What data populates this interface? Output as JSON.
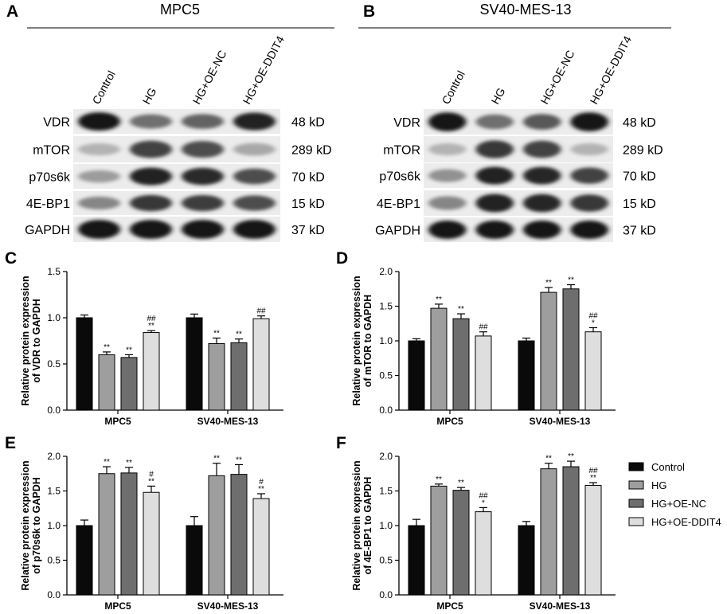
{
  "panel_letters": [
    "A",
    "B",
    "C",
    "D",
    "E",
    "F"
  ],
  "blots": [
    {
      "letter": "A",
      "title": "MPC5",
      "lanes": [
        "Control",
        "HG",
        "HG+OE-NC",
        "HG+OE-DDIT4"
      ],
      "rows": [
        {
          "label": "VDR",
          "kd": "48 kD",
          "intensity": [
            0.95,
            0.55,
            0.6,
            0.9
          ]
        },
        {
          "label": "mTOR",
          "kd": "289 kD",
          "intensity": [
            0.25,
            0.75,
            0.7,
            0.3
          ]
        },
        {
          "label": "p70s6k",
          "kd": "70 kD",
          "intensity": [
            0.35,
            0.9,
            0.85,
            0.7
          ]
        },
        {
          "label": "4E-BP1",
          "kd": "15 kD",
          "intensity": [
            0.45,
            0.8,
            0.78,
            0.7
          ]
        },
        {
          "label": "GAPDH",
          "kd": "37 kD",
          "intensity": [
            0.95,
            0.95,
            0.95,
            0.95
          ]
        }
      ]
    },
    {
      "letter": "B",
      "title": "SV40-MES-13",
      "lanes": [
        "Control",
        "HG",
        "HG+OE-NC",
        "HG+OE-DDIT4"
      ],
      "rows": [
        {
          "label": "VDR",
          "kd": "48 kD",
          "intensity": [
            0.95,
            0.55,
            0.65,
            0.95
          ]
        },
        {
          "label": "mTOR",
          "kd": "289 kD",
          "intensity": [
            0.25,
            0.8,
            0.75,
            0.25
          ]
        },
        {
          "label": "p70s6k",
          "kd": "70 kD",
          "intensity": [
            0.4,
            0.9,
            0.88,
            0.75
          ]
        },
        {
          "label": "4E-BP1",
          "kd": "15 kD",
          "intensity": [
            0.45,
            0.9,
            0.88,
            0.8
          ]
        },
        {
          "label": "GAPDH",
          "kd": "37 kD",
          "intensity": [
            0.95,
            0.95,
            0.95,
            0.95
          ]
        }
      ]
    }
  ],
  "legend": {
    "entries": [
      "Control",
      "HG",
      "HG+OE-NC",
      "HG+OE-DDIT4"
    ],
    "colors": [
      "#0a0a0a",
      "#9e9e9e",
      "#6e6e6e",
      "#dedede"
    ]
  },
  "chart_data": [
    {
      "letter": "C",
      "type": "bar",
      "ylabel": "Relative protein expression\nof VDR to GAPDH",
      "categories": [
        "MPC5",
        "SV40-MES-13"
      ],
      "ylim": [
        0,
        1.5
      ],
      "yticks": [
        "0.0",
        "0.5",
        "1.0",
        "1.5"
      ],
      "series": [
        {
          "name": "Control",
          "values": [
            1.0,
            1.0
          ],
          "err": [
            0.03,
            0.04
          ],
          "sig": [
            "",
            ""
          ]
        },
        {
          "name": "HG",
          "values": [
            0.6,
            0.72
          ],
          "err": [
            0.03,
            0.06
          ],
          "sig": [
            "**",
            "**"
          ]
        },
        {
          "name": "HG+OE-NC",
          "values": [
            0.57,
            0.73
          ],
          "err": [
            0.03,
            0.04
          ],
          "sig": [
            "**",
            "**"
          ]
        },
        {
          "name": "HG+OE-DDIT4",
          "values": [
            0.84,
            0.99
          ],
          "err": [
            0.02,
            0.03
          ],
          "sig": [
            "##\n**",
            "##"
          ]
        }
      ]
    },
    {
      "letter": "D",
      "type": "bar",
      "ylabel": "Relative protein expression\nof mTOR to GAPDH",
      "categories": [
        "MPC5",
        "SV40-MES-13"
      ],
      "ylim": [
        0,
        2.0
      ],
      "yticks": [
        "0.0",
        "0.5",
        "1.0",
        "1.5",
        "2.0"
      ],
      "series": [
        {
          "name": "Control",
          "values": [
            1.0,
            1.0
          ],
          "err": [
            0.03,
            0.04
          ],
          "sig": [
            "",
            ""
          ]
        },
        {
          "name": "HG",
          "values": [
            1.47,
            1.7
          ],
          "err": [
            0.06,
            0.07
          ],
          "sig": [
            "**",
            "**"
          ]
        },
        {
          "name": "HG+OE-NC",
          "values": [
            1.32,
            1.75
          ],
          "err": [
            0.07,
            0.06
          ],
          "sig": [
            "**",
            "**"
          ]
        },
        {
          "name": "HG+OE-DDIT4",
          "values": [
            1.07,
            1.13
          ],
          "err": [
            0.06,
            0.06
          ],
          "sig": [
            "##",
            "##\n*"
          ]
        }
      ]
    },
    {
      "letter": "E",
      "type": "bar",
      "ylabel": "Relative protein expression\nof p70s6k to GAPDH",
      "categories": [
        "MPC5",
        "SV40-MES-13"
      ],
      "ylim": [
        0,
        2.0
      ],
      "yticks": [
        "0.0",
        "0.5",
        "1.0",
        "1.5",
        "2.0"
      ],
      "series": [
        {
          "name": "Control",
          "values": [
            1.0,
            1.0
          ],
          "err": [
            0.08,
            0.13
          ],
          "sig": [
            "",
            ""
          ]
        },
        {
          "name": "HG",
          "values": [
            1.75,
            1.72
          ],
          "err": [
            0.1,
            0.18
          ],
          "sig": [
            "**",
            "**"
          ]
        },
        {
          "name": "HG+OE-NC",
          "values": [
            1.76,
            1.74
          ],
          "err": [
            0.08,
            0.14
          ],
          "sig": [
            "**",
            "**"
          ]
        },
        {
          "name": "HG+OE-DDIT4",
          "values": [
            1.48,
            1.39
          ],
          "err": [
            0.09,
            0.07
          ],
          "sig": [
            "#\n**",
            "#\n**"
          ]
        }
      ]
    },
    {
      "letter": "F",
      "type": "bar",
      "ylabel": "Relative protein expression\nof 4E-BP1 to GAPDH",
      "categories": [
        "MPC5",
        "SV40-MES-13"
      ],
      "ylim": [
        0,
        2.0
      ],
      "yticks": [
        "0.0",
        "0.5",
        "1.0",
        "1.5",
        "2.0"
      ],
      "series": [
        {
          "name": "Control",
          "values": [
            1.0,
            1.0
          ],
          "err": [
            0.09,
            0.06
          ],
          "sig": [
            "",
            ""
          ]
        },
        {
          "name": "HG",
          "values": [
            1.57,
            1.82
          ],
          "err": [
            0.03,
            0.08
          ],
          "sig": [
            "**",
            "**"
          ]
        },
        {
          "name": "HG+OE-NC",
          "values": [
            1.51,
            1.85
          ],
          "err": [
            0.04,
            0.08
          ],
          "sig": [
            "**",
            "**"
          ]
        },
        {
          "name": "HG+OE-DDIT4",
          "values": [
            1.2,
            1.58
          ],
          "err": [
            0.06,
            0.04
          ],
          "sig": [
            "##\n*",
            "##\n**"
          ]
        }
      ]
    }
  ]
}
